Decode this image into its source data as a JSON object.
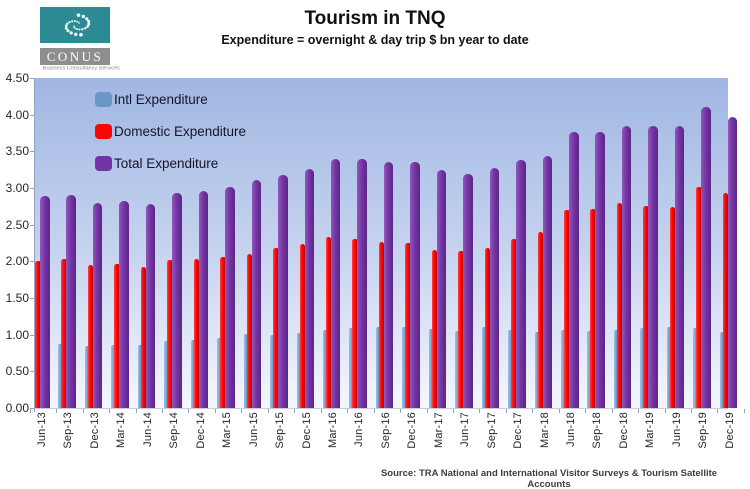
{
  "logo": {
    "name": "CONUS",
    "tagline": "Business Consultancy Services",
    "teal_color": "#2b8a94",
    "band_color": "#8e8e90"
  },
  "header": {
    "title": "Tourism in TNQ",
    "subtitle": "Expenditure = overnight & day trip $ bn year to date"
  },
  "source_note": "Source: TRA National and International Visitor Surveys & Tourism Satellite Accounts",
  "chart_data": {
    "type": "bar",
    "title": "Tourism in TNQ",
    "subtitle": "Expenditure = overnight & day trip $ bn year to date",
    "xlabel": "",
    "ylabel": "",
    "ylim": [
      0,
      4.5
    ],
    "ytick_step": 0.5,
    "ytick_labels": [
      "4.50",
      "4.00",
      "3.50",
      "3.00",
      "2.50",
      "2.00",
      "1.50",
      "1.00",
      "0.50",
      "0.00"
    ],
    "grid": false,
    "legend_position": "inside-top-left",
    "plot_background": [
      "#a0b7e2",
      "#f3f7fd"
    ],
    "categories": [
      "Jun-13",
      "Sep-13",
      "Dec-13",
      "Mar-14",
      "Jun-14",
      "Sep-14",
      "Dec-14",
      "Mar-15",
      "Jun-15",
      "Sep-15",
      "Dec-15",
      "Mar-16",
      "Jun-16",
      "Sep-16",
      "Dec-16",
      "Mar-17",
      "Jun-17",
      "Sep-17",
      "Dec-17",
      "Mar-18",
      "Jun-18",
      "Sep-18",
      "Dec-18",
      "Mar-19",
      "Jun-19",
      "Sep-19",
      "Dec-19"
    ],
    "series": [
      {
        "name": "Intl Expenditure",
        "color": "#6d96c8",
        "values": [
          null,
          0.87,
          0.85,
          0.86,
          0.86,
          0.91,
          0.93,
          0.95,
          1.01,
          1.0,
          1.02,
          1.07,
          1.09,
          1.1,
          1.1,
          1.08,
          1.05,
          1.1,
          1.07,
          1.04,
          1.06,
          1.05,
          1.06,
          1.09,
          1.1,
          1.09,
          1.04
        ]
      },
      {
        "name": "Domestic Expenditure",
        "color": "#fb0505",
        "values": [
          2.01,
          2.03,
          1.95,
          1.97,
          1.92,
          2.02,
          2.03,
          2.06,
          2.1,
          2.18,
          2.24,
          2.33,
          2.31,
          2.26,
          2.25,
          2.16,
          2.14,
          2.18,
          2.31,
          2.4,
          2.7,
          2.72,
          2.79,
          2.76,
          2.74,
          3.01,
          2.93
        ]
      },
      {
        "name": "Total Expenditure",
        "color": "#7434a4",
        "values": [
          2.89,
          2.9,
          2.8,
          2.83,
          2.78,
          2.93,
          2.96,
          3.01,
          3.11,
          3.18,
          3.26,
          3.4,
          3.4,
          3.36,
          3.35,
          3.24,
          3.19,
          3.28,
          3.38,
          3.44,
          3.76,
          3.77,
          3.85,
          3.85,
          3.84,
          4.1,
          3.97
        ]
      }
    ]
  }
}
